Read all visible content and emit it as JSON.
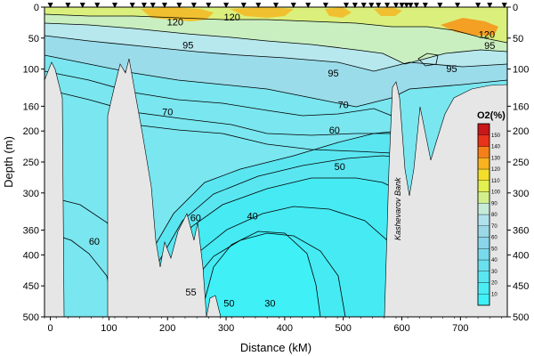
{
  "chart_data": {
    "type": "contour",
    "xlabel": "Distance (kM)",
    "ylabel": "Depth (m)",
    "xlim": [
      -10,
      780
    ],
    "ylim": [
      0,
      500
    ],
    "y_inverted": true,
    "x_ticks": [
      0,
      100,
      200,
      300,
      400,
      500,
      600,
      700
    ],
    "y_ticks": [
      0,
      50,
      100,
      160,
      200,
      250,
      300,
      360,
      400,
      450,
      500
    ],
    "station_positions_km": [
      0,
      30,
      55,
      80,
      110,
      140,
      160,
      175,
      195,
      220,
      245,
      270,
      300,
      330,
      355,
      385,
      415,
      440,
      470,
      505,
      520,
      535,
      548,
      560,
      575,
      590,
      600,
      608,
      615,
      625,
      640,
      665,
      695,
      730,
      750,
      775
    ],
    "legend": {
      "title": "O2(%)",
      "title_sub": "2",
      "levels": [
        10,
        20,
        30,
        40,
        50,
        60,
        70,
        80,
        90,
        100,
        110,
        120,
        130,
        140,
        150
      ],
      "colors": [
        "#3ff0f7",
        "#4cecf4",
        "#5ae6f1",
        "#69e0ee",
        "#79daec",
        "#8ad5ea",
        "#9ad8e8",
        "#b0e2ee",
        "#c6ecd9",
        "#d2ef8c",
        "#e2f050",
        "#f3de2c",
        "#f9b320",
        "#f57f18",
        "#e8321a",
        "#c8181a"
      ]
    },
    "contour_labels": [
      {
        "value": "120",
        "x": 213,
        "y": 24
      },
      {
        "value": "120",
        "x": 310,
        "y": 16
      },
      {
        "value": "120",
        "x": 745,
        "y": 44
      },
      {
        "value": "95",
        "x": 235,
        "y": 61
      },
      {
        "value": "95",
        "x": 483,
        "y": 106
      },
      {
        "value": "95",
        "x": 685,
        "y": 99
      },
      {
        "value": "95",
        "x": 750,
        "y": 62
      },
      {
        "value": "70",
        "x": 200,
        "y": 169
      },
      {
        "value": "70",
        "x": 500,
        "y": 157
      },
      {
        "value": "60",
        "x": 485,
        "y": 198
      },
      {
        "value": "50",
        "x": 494,
        "y": 257
      },
      {
        "value": "40",
        "x": 345,
        "y": 337
      },
      {
        "value": "60",
        "x": 75,
        "y": 378
      },
      {
        "value": "60",
        "x": 248,
        "y": 340
      },
      {
        "value": "55",
        "x": 240,
        "y": 460
      },
      {
        "value": "50",
        "x": 305,
        "y": 478
      },
      {
        "value": "30",
        "x": 375,
        "y": 478
      }
    ],
    "annotations": [
      {
        "text": "Kashevarov Bank",
        "x": 596,
        "y": 255
      }
    ]
  }
}
